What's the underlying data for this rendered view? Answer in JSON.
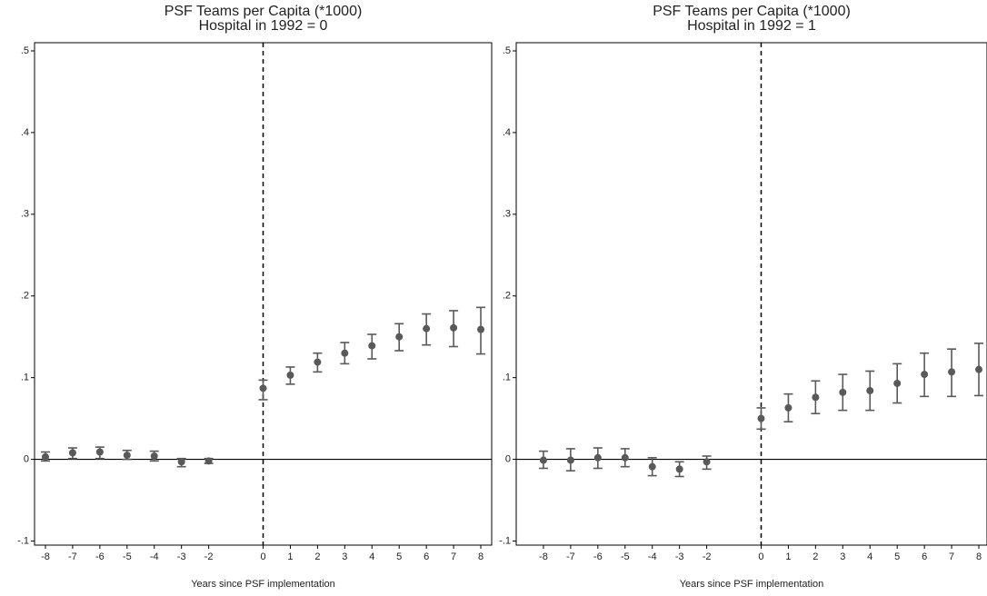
{
  "chart_data": [
    {
      "type": "scatter",
      "title": "PSF Teams per Capita (*1000)",
      "subtitle": "Hospital in 1992 = 0",
      "x_label": "Years since PSF implementation",
      "x": [
        -8,
        -7,
        -6,
        -5,
        -4,
        -3,
        -2,
        0,
        1,
        2,
        3,
        4,
        5,
        6,
        7,
        8
      ],
      "values": [
        0.003,
        0.008,
        0.009,
        0.005,
        0.004,
        -0.003,
        -0.002,
        0.087,
        0.103,
        0.119,
        0.13,
        0.139,
        0.15,
        0.16,
        0.161,
        0.159
      ],
      "ci_high": [
        0.009,
        0.014,
        0.015,
        0.011,
        0.01,
        0.001,
        0.001,
        0.097,
        0.113,
        0.13,
        0.143,
        0.153,
        0.166,
        0.178,
        0.182,
        0.186
      ],
      "ci_low": [
        -0.002,
        0.001,
        0.001,
        0.0,
        -0.002,
        -0.009,
        -0.005,
        0.073,
        0.092,
        0.107,
        0.117,
        0.123,
        0.133,
        0.14,
        0.138,
        0.129
      ],
      "color": "#595959",
      "xlim": [
        -8.4,
        8.4
      ],
      "ylim": [
        -0.105,
        0.51
      ],
      "xticks": [
        -8,
        -7,
        -6,
        -5,
        -4,
        -3,
        -2,
        0,
        1,
        2,
        3,
        4,
        5,
        6,
        7,
        8
      ],
      "yticks": [
        {
          "value": -0.1,
          "label": "-.1"
        },
        0,
        {
          "value": 0.1,
          "label": ".1"
        },
        {
          "value": 0.2,
          "label": ".2"
        },
        {
          "value": 0.3,
          "label": ".3"
        },
        {
          "value": 0.4,
          "label": ".4"
        },
        {
          "value": 0.5,
          "label": ".5"
        }
      ],
      "hline": 0,
      "vline": 0
    },
    {
      "type": "scatter",
      "title": "PSF Teams per Capita (*1000)",
      "subtitle": "Hospital in 1992 = 1",
      "x_label": "Years since PSF implementation",
      "x": [
        -8,
        -7,
        -6,
        -5,
        -4,
        -3,
        -2,
        0,
        1,
        2,
        3,
        4,
        5,
        6,
        7,
        8
      ],
      "values": [
        -0.001,
        -0.001,
        0.002,
        0.002,
        -0.009,
        -0.012,
        -0.003,
        0.05,
        0.063,
        0.076,
        0.082,
        0.084,
        0.093,
        0.104,
        0.107,
        0.11
      ],
      "ci_high": [
        0.01,
        0.013,
        0.014,
        0.013,
        0.002,
        -0.003,
        0.004,
        0.063,
        0.08,
        0.096,
        0.104,
        0.108,
        0.117,
        0.13,
        0.135,
        0.142
      ],
      "ci_low": [
        -0.011,
        -0.014,
        -0.011,
        -0.009,
        -0.02,
        -0.021,
        -0.012,
        0.037,
        0.046,
        0.056,
        0.06,
        0.06,
        0.069,
        0.077,
        0.077,
        0.078
      ],
      "color": "#595959",
      "xlim": [
        -9,
        8.3
      ],
      "ylim": [
        -0.105,
        0.51
      ],
      "xticks": [
        -8,
        -7,
        -6,
        -5,
        -4,
        -3,
        -2,
        0,
        1,
        2,
        3,
        4,
        5,
        6,
        7,
        8
      ],
      "yticks": [
        {
          "value": -0.1,
          "label": "-.1"
        },
        0,
        {
          "value": 0.1,
          "label": ".1"
        },
        {
          "value": 0.2,
          "label": ".2"
        },
        {
          "value": 0.3,
          "label": ".3"
        },
        {
          "value": 0.4,
          "label": ".4"
        },
        {
          "value": 0.5,
          "label": ".5"
        }
      ],
      "hline": 0,
      "vline": 0
    }
  ]
}
